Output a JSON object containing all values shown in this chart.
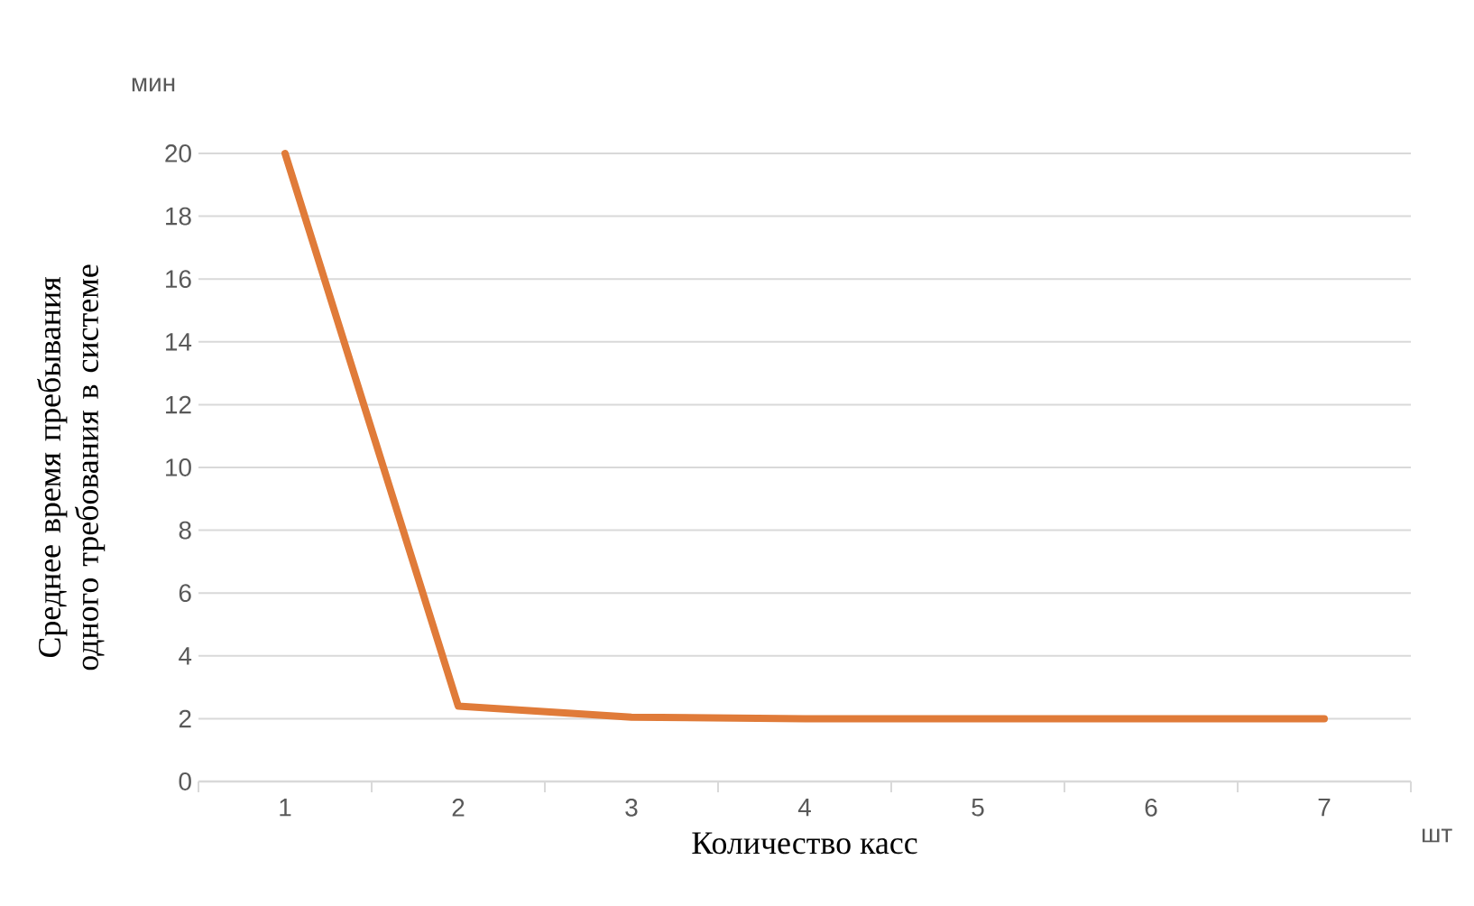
{
  "chart_data": {
    "type": "line",
    "xlabel": "Количество касс",
    "ylabel": "Среднее время пребывания одного требования в системе",
    "annotations": [
      "мин",
      "шт"
    ],
    "categories": [
      "1",
      "2",
      "3",
      "4",
      "5",
      "6",
      "7"
    ],
    "series": [
      {
        "color": "#e07b39",
        "values": [
          20,
          2.4,
          2.05,
          2,
          2,
          2,
          2
        ]
      }
    ],
    "ylim": [
      0,
      20
    ],
    "yticks": [
      0,
      2,
      4,
      6,
      8,
      10,
      12,
      14,
      16,
      18,
      20
    ],
    "grid": "y",
    "marker": "none",
    "line_style": "solid"
  }
}
